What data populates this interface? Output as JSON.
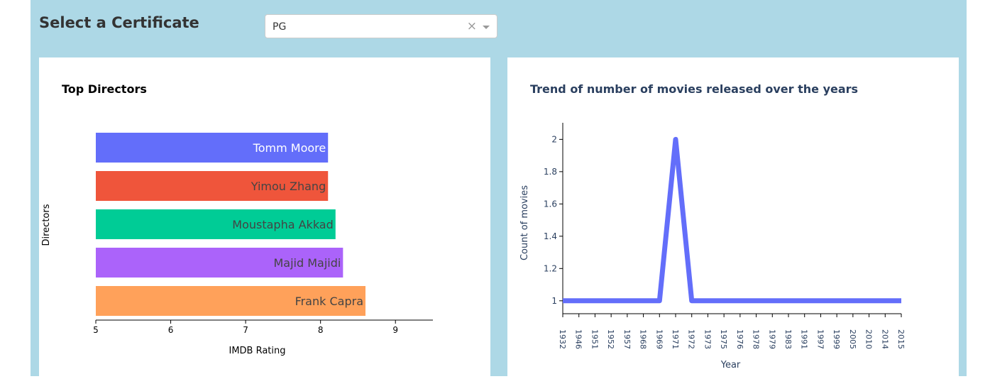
{
  "header": {
    "title": "Select a Certificate"
  },
  "certificate_select": {
    "value": "PG",
    "clear_symbol": "×"
  },
  "chart_data": [
    {
      "type": "bar",
      "orientation": "horizontal",
      "title": "Top Directors",
      "xlabel": "IMDB Rating",
      "ylabel": "Directors",
      "xlim": [
        5,
        9.5
      ],
      "xticks": [
        5,
        6,
        7,
        8,
        9
      ],
      "categories": [
        "Tomm Moore",
        "Yimou Zhang",
        "Moustapha Akkad",
        "Majid Majidi",
        "Frank Capra"
      ],
      "values": [
        8.1,
        8.1,
        8.2,
        8.3,
        8.6
      ],
      "colors": [
        "#636efa",
        "#ef553b",
        "#00cc96",
        "#ab63fa",
        "#ffa15a"
      ],
      "label_colors": [
        "#ffffff",
        "#444444",
        "#444444",
        "#444444",
        "#444444"
      ],
      "grid": false,
      "legend": "none"
    },
    {
      "type": "line",
      "title": "Trend of number of movies released over the years",
      "xlabel": "Year",
      "ylabel": "Count of movies",
      "x": [
        "1932",
        "1946",
        "1951",
        "1952",
        "1957",
        "1968",
        "1969",
        "1971",
        "1972",
        "1973",
        "1975",
        "1976",
        "1978",
        "1979",
        "1983",
        "1991",
        "1997",
        "1999",
        "2005",
        "2010",
        "2014",
        "2015"
      ],
      "y": [
        1,
        1,
        1,
        1,
        1,
        1,
        1,
        2,
        1,
        1,
        1,
        1,
        1,
        1,
        1,
        1,
        1,
        1,
        1,
        1,
        1,
        1
      ],
      "ylim": [
        0.92,
        2.05
      ],
      "yticks": [
        "1",
        "1.2",
        "1.4",
        "1.6",
        "1.8",
        "2"
      ],
      "color": "#636efa",
      "grid": false,
      "legend": "none"
    }
  ]
}
